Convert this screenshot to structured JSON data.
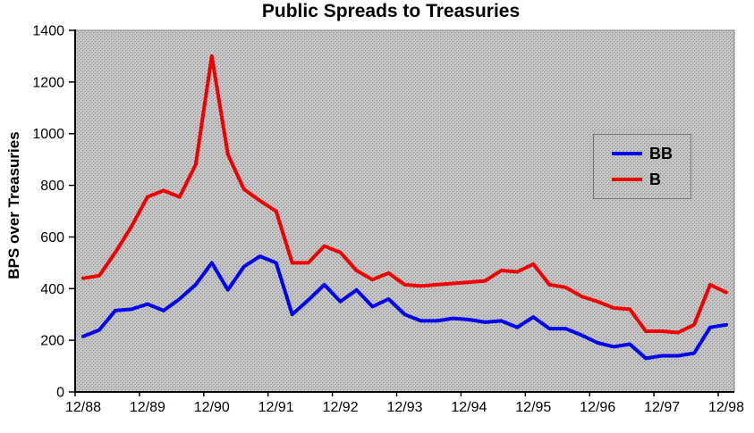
{
  "chart_data": {
    "type": "line",
    "title": "Public Spreads to Treasuries",
    "ylabel": "BPS over Treasuries",
    "xlabel": "",
    "x_tick_labels": [
      "12/88",
      "12/89",
      "12/90",
      "12/91",
      "12/92",
      "12/93",
      "12/94",
      "12/95",
      "12/96",
      "12/97",
      "12/98"
    ],
    "points_per_year": 4,
    "n_points": 41,
    "ylim": [
      0,
      1400
    ],
    "y_tick_step": 200,
    "grid": false,
    "legend_position": "inside-upper-right",
    "colors": {
      "axis": "#000000",
      "plot_border": "#808080",
      "plot_bg_base": "#c9c9c9",
      "plot_bg_dot": "#8d8d8d",
      "bb_line": "#0000ee",
      "b_line": "#ee0000"
    },
    "series": [
      {
        "name": "BB",
        "color": "#0000ee",
        "values": [
          215,
          240,
          315,
          320,
          340,
          315,
          360,
          415,
          500,
          395,
          485,
          525,
          500,
          300,
          355,
          415,
          350,
          395,
          330,
          360,
          300,
          275,
          275,
          285,
          280,
          270,
          275,
          250,
          290,
          245,
          245,
          220,
          190,
          175,
          185,
          130,
          140,
          140,
          150,
          250,
          260
        ]
      },
      {
        "name": "B",
        "color": "#ee0000",
        "values": [
          440,
          450,
          540,
          640,
          755,
          780,
          755,
          880,
          1300,
          920,
          785,
          740,
          700,
          500,
          500,
          565,
          540,
          470,
          435,
          460,
          415,
          410,
          415,
          420,
          425,
          430,
          470,
          465,
          495,
          415,
          405,
          370,
          350,
          325,
          320,
          235,
          235,
          230,
          260,
          415,
          385
        ]
      }
    ]
  }
}
